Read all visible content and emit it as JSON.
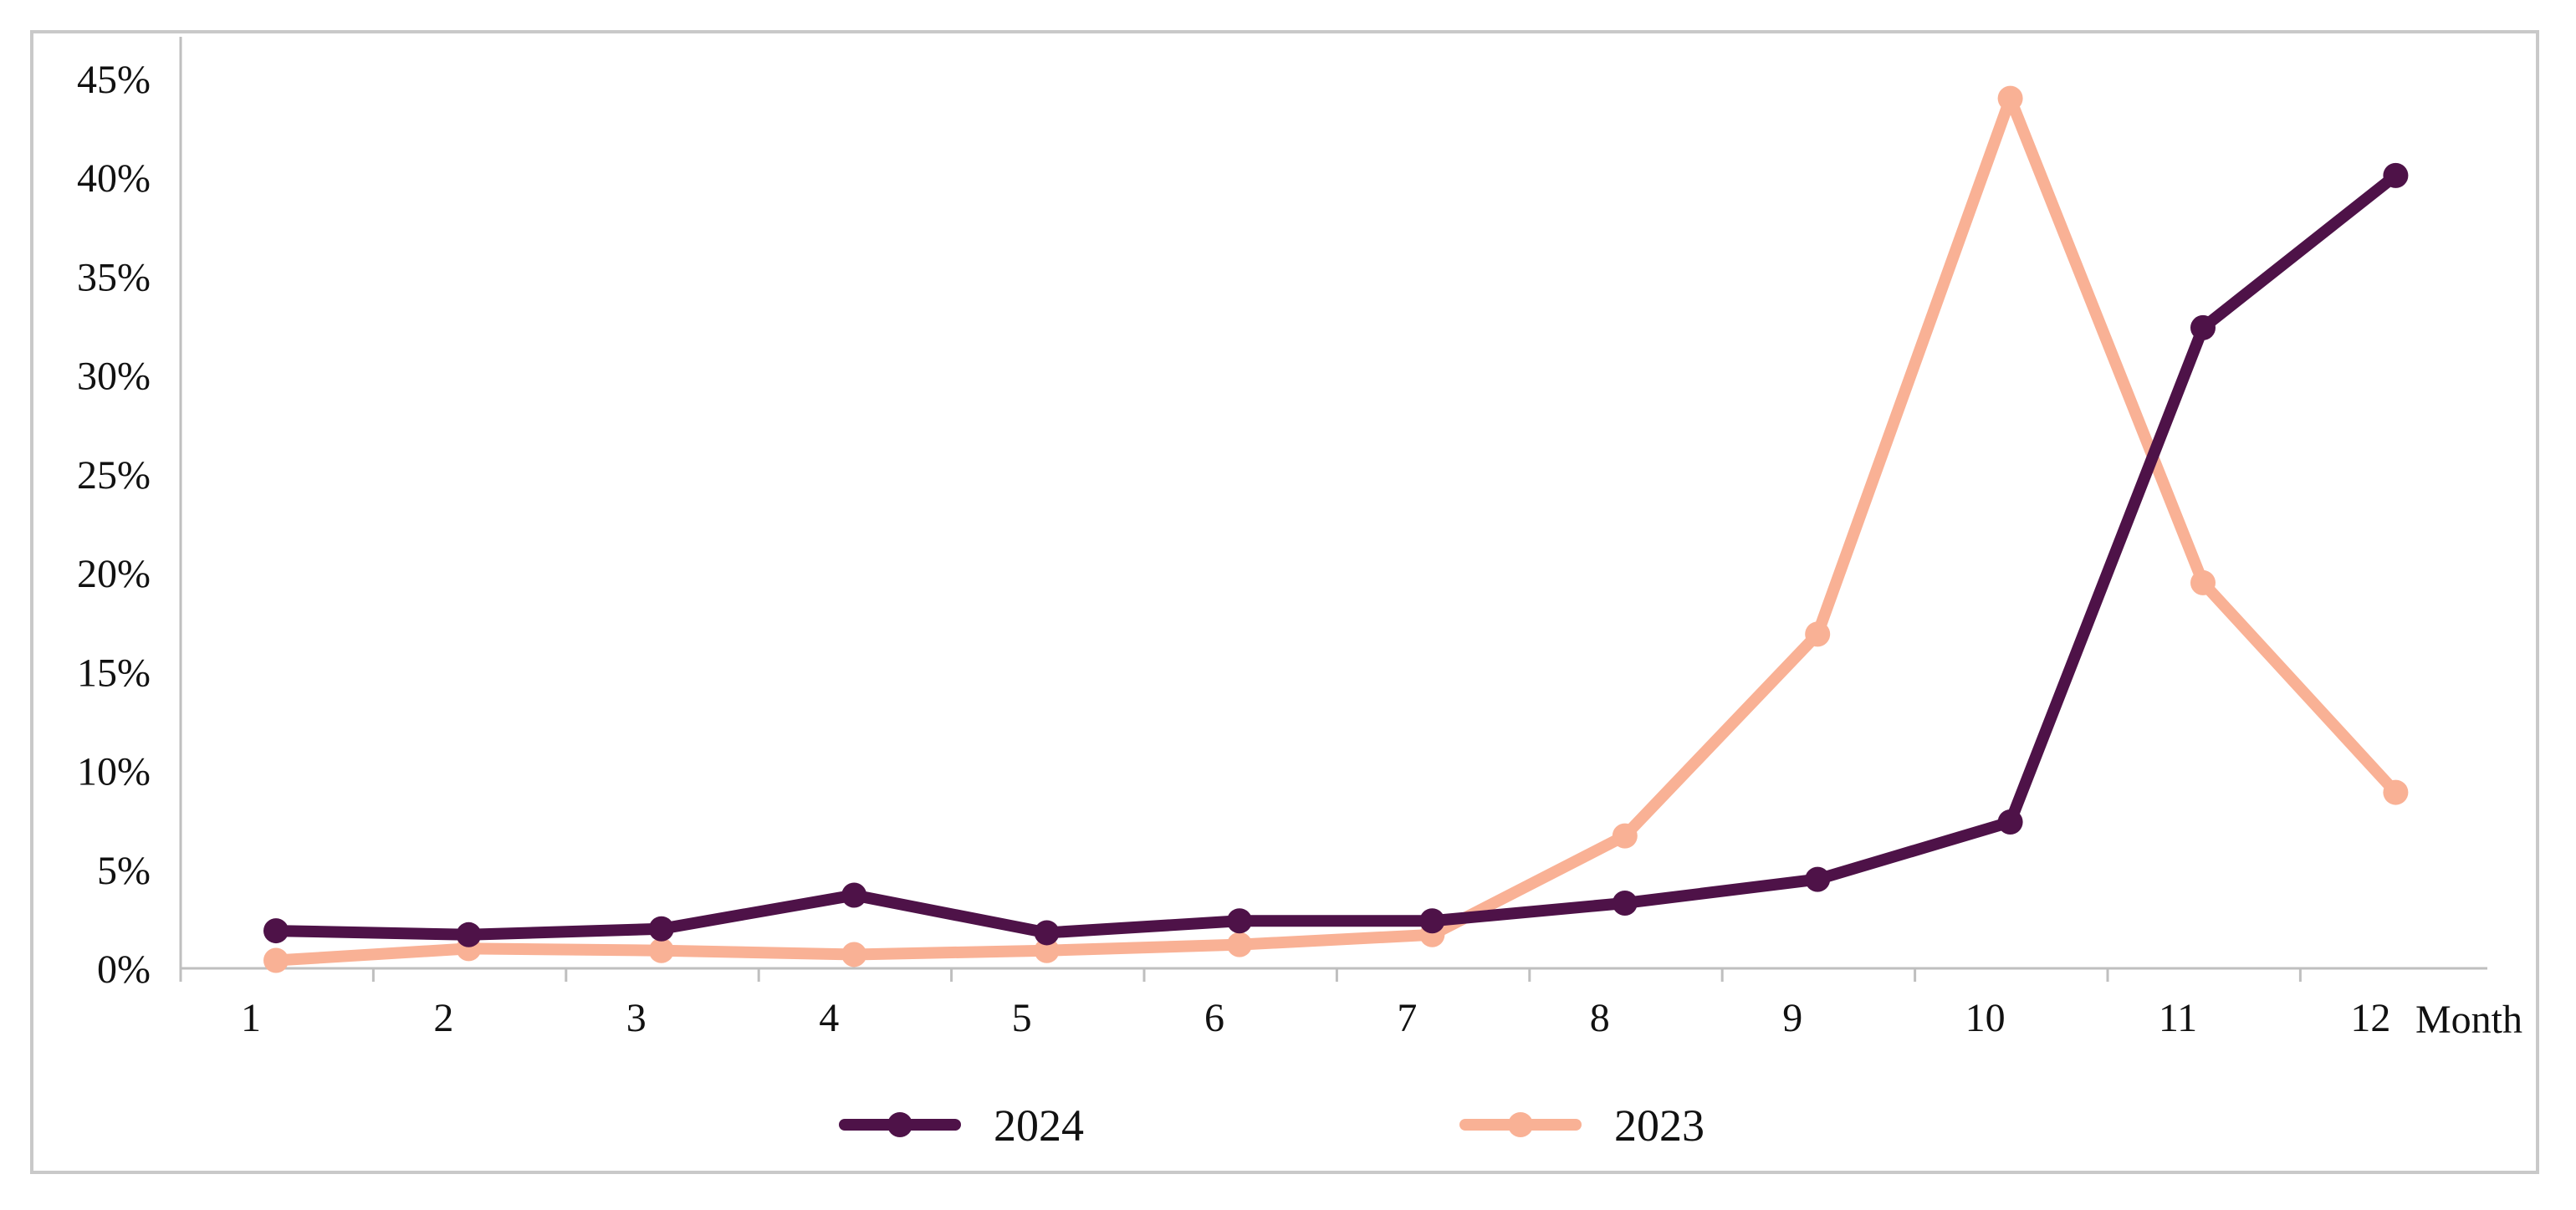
{
  "chart_data": {
    "type": "line",
    "title": "",
    "xlabel": "Month",
    "ylabel": "",
    "categories": [
      "1",
      "2",
      "3",
      "4",
      "5",
      "6",
      "7",
      "8",
      "9",
      "10",
      "11",
      "12"
    ],
    "ylim": [
      0,
      0.45
    ],
    "yticks": [
      0,
      0.05,
      0.1,
      0.15,
      0.2,
      0.25,
      0.3,
      0.35,
      0.4,
      0.45
    ],
    "ytick_labels": [
      "0%",
      "5%",
      "10%",
      "15%",
      "20%",
      "25%",
      "30%",
      "35%",
      "40%",
      "45%"
    ],
    "grid": false,
    "legend_position": "bottom",
    "series": [
      {
        "name": "2024",
        "color": "#4e1248",
        "marker": "circle",
        "values": [
          0.019,
          0.017,
          0.02,
          0.037,
          0.018,
          0.024,
          0.024,
          0.033,
          0.045,
          0.074,
          0.324,
          0.401
        ]
      },
      {
        "name": "2023",
        "color": "#f9b195",
        "marker": "circle",
        "values": [
          0.004,
          0.01,
          0.009,
          0.007,
          0.009,
          0.012,
          0.017,
          0.067,
          0.169,
          0.44,
          0.195,
          0.089
        ]
      }
    ]
  }
}
